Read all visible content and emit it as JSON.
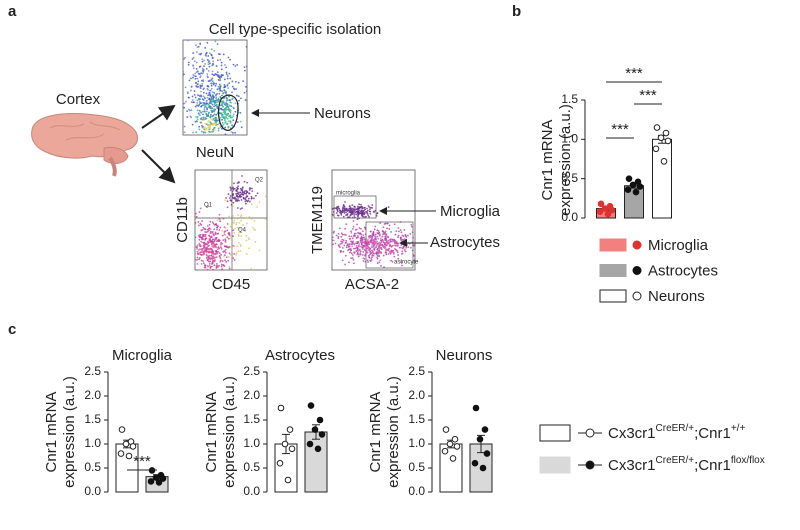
{
  "panel_labels": [
    "a",
    "b",
    "c"
  ],
  "panel_a": {
    "title": "Cell type-specific isolation",
    "source": "Cortex",
    "plots": [
      {
        "x_label": "NeuN",
        "annotations": [
          "Neurons"
        ]
      },
      {
        "x_label": "CD45",
        "y_label": "CD11b",
        "gates": [
          "Q1",
          "Q2",
          "Q4"
        ]
      },
      {
        "x_label": "ACSA-2",
        "y_label": "TMEM119",
        "gates": [
          "microglia",
          "astrocyte"
        ],
        "annotations": [
          "Microglia",
          "Astrocytes"
        ]
      }
    ]
  },
  "chart_data": [
    {
      "type": "bar",
      "y_label": [
        "Cnr1 mRNA",
        "expression (a.u.)"
      ],
      "categories": [
        "Microglia",
        "Astrocytes",
        "Neurons"
      ],
      "values": [
        0.12,
        0.41,
        1.0
      ],
      "errors": [
        0.02,
        0.03,
        0.05
      ],
      "points": [
        [
          0.18,
          0.15,
          0.12,
          0.1,
          0.08,
          0.05
        ],
        [
          0.5,
          0.46,
          0.42,
          0.4,
          0.36,
          0.33
        ],
        [
          1.15,
          1.08,
          1.02,
          0.98,
          0.88,
          0.72
        ]
      ],
      "colors": [
        "#f47f7f",
        "#a6a6a6",
        "#ffffff"
      ],
      "point_fill": [
        "#e0302f",
        "#111111",
        "#ffffff"
      ],
      "ylim": [
        0,
        1.5
      ],
      "yticks": [
        {
          "value": 0,
          "label": "0.0"
        },
        0.5,
        {
          "value": 1,
          "label": "1.0"
        },
        1.5
      ],
      "significance": [
        {
          "from": 0,
          "to": 1,
          "label": "***"
        },
        {
          "from": 1,
          "to": 2,
          "label": "***"
        },
        {
          "from": 0,
          "to": 2,
          "label": "***"
        }
      ]
    },
    {
      "type": "bar",
      "title": "Microglia",
      "y_label": [
        "Cnr1 mRNA",
        "expression (a.u.)"
      ],
      "series": [
        {
          "color": "#ffffff",
          "point_fill": "#ffffff",
          "values": [
            1.0
          ],
          "errors": [
            0.08
          ],
          "points": [
            [
              1.3,
              1.05,
              1.0,
              0.95,
              0.8,
              0.75
            ]
          ]
        },
        {
          "color": "#d9d9d9",
          "point_fill": "#111111",
          "values": [
            0.32
          ],
          "errors": [
            0.04
          ],
          "points": [
            [
              0.45,
              0.35,
              0.3,
              0.28,
              0.22,
              0.2
            ]
          ]
        }
      ],
      "ylim": [
        0,
        2.5
      ],
      "yticks": [
        {
          "value": 0,
          "label": "0.0"
        },
        0.5,
        {
          "value": 1,
          "label": "1.0"
        },
        1.5,
        {
          "value": 2,
          "label": "2.0"
        },
        2.5
      ],
      "significance": [
        {
          "from": 0,
          "to": 1,
          "label": "***"
        }
      ]
    },
    {
      "type": "bar",
      "title": "Astrocytes",
      "y_label": [
        "Cnr1 mRNA",
        "expression (a.u.)"
      ],
      "series": [
        {
          "color": "#ffffff",
          "point_fill": "#ffffff",
          "values": [
            1.0
          ],
          "errors": [
            0.2
          ],
          "points": [
            [
              1.75,
              1.3,
              1.0,
              0.9,
              0.6,
              0.25
            ]
          ]
        },
        {
          "color": "#d9d9d9",
          "point_fill": "#111111",
          "values": [
            1.25
          ],
          "errors": [
            0.15
          ],
          "points": [
            [
              1.8,
              1.5,
              1.3,
              1.2,
              1.0,
              0.9
            ]
          ]
        }
      ],
      "ylim": [
        0,
        2.5
      ],
      "yticks": [
        {
          "value": 0,
          "label": "0.0"
        },
        0.5,
        {
          "value": 1,
          "label": "1.0"
        },
        1.5,
        {
          "value": 2,
          "label": "2.0"
        },
        2.5
      ]
    },
    {
      "type": "bar",
      "title": "Neurons",
      "y_label": [
        "Cnr1 mRNA",
        "expression (a.u.)"
      ],
      "series": [
        {
          "color": "#ffffff",
          "point_fill": "#ffffff",
          "values": [
            1.0
          ],
          "errors": [
            0.08
          ],
          "points": [
            [
              1.3,
              1.1,
              1.0,
              0.95,
              0.85,
              0.7
            ]
          ]
        },
        {
          "color": "#d9d9d9",
          "point_fill": "#111111",
          "values": [
            1.0
          ],
          "errors": [
            0.18
          ],
          "points": [
            [
              1.75,
              1.3,
              1.1,
              0.8,
              0.6,
              0.5
            ]
          ]
        }
      ],
      "ylim": [
        0,
        2.5
      ],
      "yticks": [
        {
          "value": 0,
          "label": "0.0"
        },
        0.5,
        {
          "value": 1,
          "label": "1.0"
        },
        1.5,
        {
          "value": 2,
          "label": "2.0"
        },
        2.5
      ]
    }
  ],
  "panel_c_legend": [
    {
      "name": [
        "Cx3cr1",
        "CreER/+",
        ";Cnr1",
        "+/+"
      ]
    },
    {
      "name": [
        "Cx3cr1",
        "CreER/+",
        ";Cnr1",
        "flox/flox"
      ]
    }
  ]
}
